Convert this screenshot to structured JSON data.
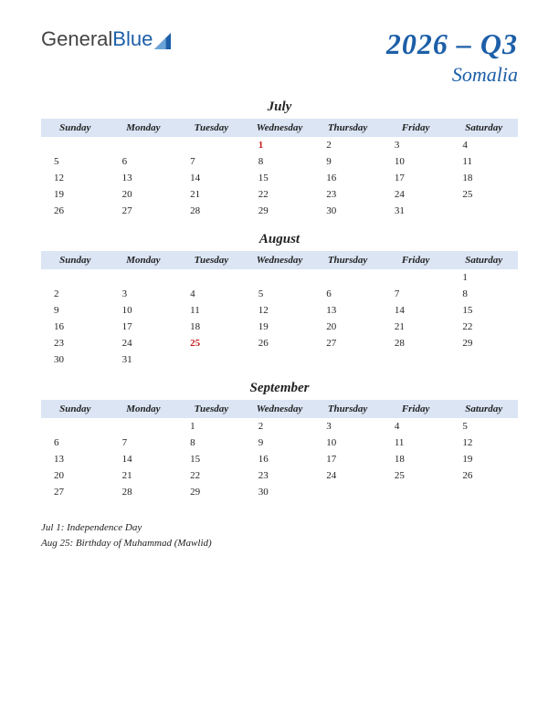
{
  "logo": {
    "part1": "General",
    "part2": "Blue"
  },
  "title": "2026 – Q3",
  "subtitle": "Somalia",
  "colors": {
    "accent": "#1d5fa8",
    "header_bg": "#dbe5f4",
    "holiday": "#c41e1e",
    "text": "#222222"
  },
  "day_headers": [
    "Sunday",
    "Monday",
    "Tuesday",
    "Wednesday",
    "Thursday",
    "Friday",
    "Saturday"
  ],
  "months": [
    {
      "name": "July",
      "weeks": [
        [
          "",
          "",
          "",
          "1",
          "2",
          "3",
          "4"
        ],
        [
          "5",
          "6",
          "7",
          "8",
          "9",
          "10",
          "11"
        ],
        [
          "12",
          "13",
          "14",
          "15",
          "16",
          "17",
          "18"
        ],
        [
          "19",
          "20",
          "21",
          "22",
          "23",
          "24",
          "25"
        ],
        [
          "26",
          "27",
          "28",
          "29",
          "30",
          "31",
          ""
        ]
      ],
      "holidays": [
        "1"
      ]
    },
    {
      "name": "August",
      "weeks": [
        [
          "",
          "",
          "",
          "",
          "",
          "",
          "1"
        ],
        [
          "2",
          "3",
          "4",
          "5",
          "6",
          "7",
          "8"
        ],
        [
          "9",
          "10",
          "11",
          "12",
          "13",
          "14",
          "15"
        ],
        [
          "16",
          "17",
          "18",
          "19",
          "20",
          "21",
          "22"
        ],
        [
          "23",
          "24",
          "25",
          "26",
          "27",
          "28",
          "29"
        ],
        [
          "30",
          "31",
          "",
          "",
          "",
          "",
          ""
        ]
      ],
      "holidays": [
        "25"
      ]
    },
    {
      "name": "September",
      "weeks": [
        [
          "",
          "",
          "1",
          "2",
          "3",
          "4",
          "5"
        ],
        [
          "6",
          "7",
          "8",
          "9",
          "10",
          "11",
          "12"
        ],
        [
          "13",
          "14",
          "15",
          "16",
          "17",
          "18",
          "19"
        ],
        [
          "20",
          "21",
          "22",
          "23",
          "24",
          "25",
          "26"
        ],
        [
          "27",
          "28",
          "29",
          "30",
          "",
          "",
          ""
        ]
      ],
      "holidays": []
    }
  ],
  "holiday_notes": [
    "Jul 1: Independence Day",
    "Aug 25: Birthday of Muhammad (Mawlid)"
  ]
}
